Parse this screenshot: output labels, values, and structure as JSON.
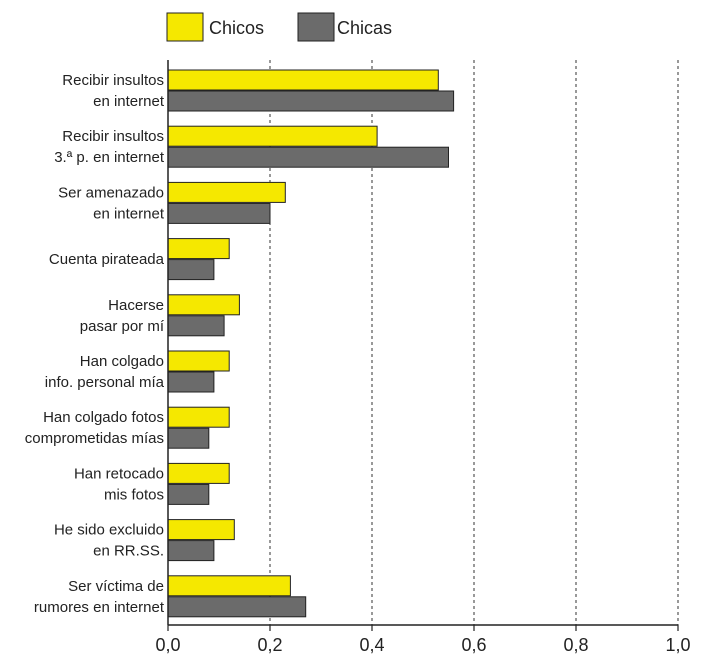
{
  "chart_data": {
    "type": "bar",
    "orientation": "horizontal",
    "categories": [
      [
        "Recibir insultos",
        "en internet"
      ],
      [
        "Recibir insultos",
        "3.ª p. en internet"
      ],
      [
        "Ser amenazado",
        "en internet"
      ],
      [
        "Cuenta pirateada"
      ],
      [
        "Hacerse",
        "pasar por mí"
      ],
      [
        "Han colgado",
        "info. personal mía"
      ],
      [
        "Han colgado fotos",
        "comprometidas mías"
      ],
      [
        "Han retocado",
        "mis fotos"
      ],
      [
        "He sido excluido",
        "en RR.SS."
      ],
      [
        "Ser víctima de",
        "rumores en internet"
      ]
    ],
    "series": [
      {
        "name": "Chicos",
        "color": "#f5e800",
        "values": [
          0.53,
          0.41,
          0.23,
          0.12,
          0.14,
          0.12,
          0.12,
          0.12,
          0.13,
          0.24
        ]
      },
      {
        "name": "Chicas",
        "color": "#6b6b6b",
        "values": [
          0.56,
          0.55,
          0.2,
          0.09,
          0.11,
          0.09,
          0.08,
          0.08,
          0.09,
          0.27
        ]
      }
    ],
    "xlim": [
      0,
      1.0
    ],
    "xticks": [
      "0,0",
      "0,2",
      "0,4",
      "0,6",
      "0,8",
      "1,0"
    ],
    "xtick_values": [
      0,
      0.2,
      0.4,
      0.6,
      0.8,
      1.0
    ],
    "grid": "vertical dashed",
    "legend_position": "top"
  }
}
